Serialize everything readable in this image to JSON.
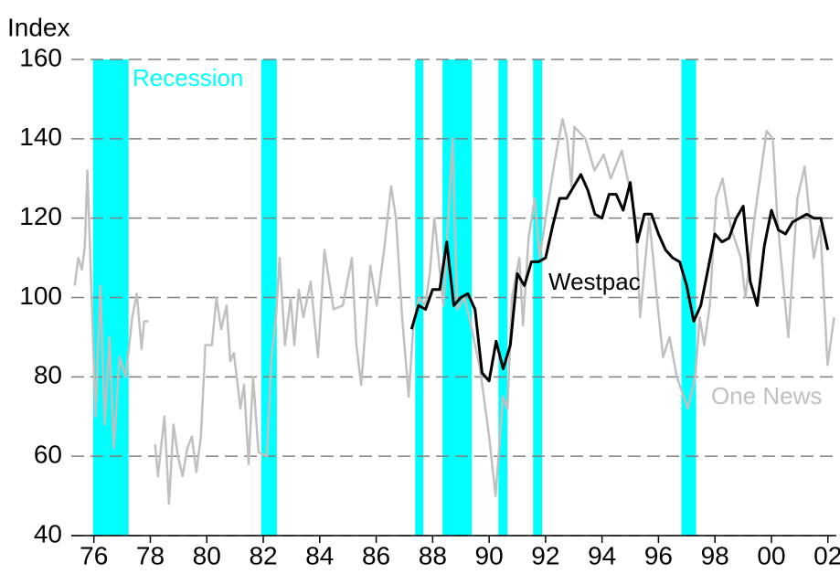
{
  "chart_data": {
    "type": "line",
    "y_axis_label": "Index",
    "recession_label": "Recession",
    "recession_color": "#00ffff",
    "recessions": [
      [
        1975.97,
        1977.23
      ],
      [
        1981.93,
        1982.48
      ],
      [
        1987.38,
        1987.67
      ],
      [
        1988.35,
        1989.39
      ],
      [
        1990.33,
        1990.65
      ],
      [
        1991.56,
        1991.88
      ],
      [
        1996.81,
        1997.33
      ]
    ],
    "xlim": [
      1975.2,
      2002.3
    ],
    "xticks": [
      {
        "value": 1976,
        "label": "76"
      },
      {
        "value": 1978,
        "label": "78"
      },
      {
        "value": 1980,
        "label": "80"
      },
      {
        "value": 1982,
        "label": "82"
      },
      {
        "value": 1984,
        "label": "84"
      },
      {
        "value": 1986,
        "label": "86"
      },
      {
        "value": 1988,
        "label": "88"
      },
      {
        "value": 1990,
        "label": "90"
      },
      {
        "value": 1992,
        "label": "92"
      },
      {
        "value": 1994,
        "label": "94"
      },
      {
        "value": 1996,
        "label": "96"
      },
      {
        "value": 1998,
        "label": "98"
      },
      {
        "value": 2000,
        "label": "00"
      },
      {
        "value": 2002,
        "label": "02"
      }
    ],
    "ylim": [
      40,
      160
    ],
    "yticks": [
      40,
      60,
      80,
      100,
      120,
      140,
      160
    ],
    "grid": true,
    "series": [
      {
        "name": "One News",
        "color": "#c0c0c0",
        "x": [
          1975.32,
          1975.45,
          1975.58,
          1975.68,
          1975.77,
          1976.06,
          1976.23,
          1976.39,
          1976.55,
          1976.71,
          1976.91,
          1977.13,
          1977.36,
          1977.52,
          1977.69,
          1977.78,
          1977.94,
          1978.05,
          1978.17,
          1978.27,
          1978.5,
          1978.66,
          1978.82,
          1978.98,
          1979.14,
          1979.31,
          1979.47,
          1979.63,
          1979.79,
          1979.95,
          1980.18,
          1980.34,
          1980.51,
          1980.7,
          1980.83,
          1980.96,
          1981.19,
          1981.32,
          1981.48,
          1981.64,
          1981.83,
          1982.13,
          1982.29,
          1982.45,
          1982.58,
          1982.77,
          1982.97,
          1983.1,
          1983.26,
          1983.42,
          1983.68,
          1983.94,
          1984.17,
          1984.49,
          1984.82,
          1985.14,
          1985.3,
          1985.47,
          1985.79,
          1986.02,
          1986.28,
          1986.53,
          1986.7,
          1986.92,
          1987.15,
          1987.31,
          1987.51,
          1987.73,
          1987.9,
          1988.06,
          1988.38,
          1988.71,
          1988.87,
          1989.13,
          1989.36,
          1989.68,
          1990.0,
          1990.23,
          1990.49,
          1990.65,
          1990.81,
          1991.07,
          1991.2,
          1991.4,
          1991.62,
          1991.79,
          1992.11,
          1992.34,
          1992.6,
          1992.76,
          1992.92,
          1993.02,
          1993.41,
          1993.73,
          1994.06,
          1994.31,
          1994.7,
          1995.19,
          1995.35,
          1995.67,
          1995.81,
          1995.94,
          1996.16,
          1996.39,
          1996.65,
          1997.04,
          1997.3,
          1997.46,
          1997.62,
          1997.82,
          1998.04,
          1998.27,
          1998.5,
          1998.59,
          1998.92,
          1999.08,
          1999.4,
          1999.83,
          2000.05,
          2000.21,
          2000.6,
          2000.92,
          2001.18,
          2001.5,
          2001.73,
          2001.99,
          2002.22
        ],
        "values": [
          103,
          110,
          107,
          113,
          132,
          70,
          103,
          68,
          90,
          62,
          85,
          80,
          95,
          101,
          87,
          94,
          94,
          null,
          63,
          55,
          70,
          48,
          68,
          60,
          55,
          62,
          65,
          56,
          65,
          88,
          88,
          100,
          92,
          98,
          84,
          86,
          72,
          78,
          58,
          80,
          61,
          60,
          85,
          95,
          110,
          88,
          100,
          88,
          102,
          95,
          104,
          85,
          112,
          97,
          98,
          110,
          88,
          78,
          108,
          98,
          112,
          128,
          120,
          95,
          75,
          92,
          100,
          98,
          106,
          120,
          98,
          140,
          97,
          100,
          93,
          82,
          65,
          50,
          75,
          72,
          100,
          110,
          93,
          115,
          125,
          110,
          125,
          135,
          145,
          140,
          128,
          143,
          140,
          132,
          136,
          130,
          137,
          120,
          95,
          120,
          110,
          100,
          85,
          90,
          80,
          72,
          80,
          95,
          88,
          98,
          125,
          130,
          120,
          117,
          110,
          100,
          120,
          142,
          140,
          120,
          90,
          125,
          133,
          110,
          118,
          83,
          95
        ]
      },
      {
        "name": "Westpac",
        "color": "#000000",
        "x": [
          1987.25,
          1987.5,
          1987.75,
          1988.0,
          1988.25,
          1988.5,
          1988.75,
          1989.0,
          1989.25,
          1989.5,
          1989.75,
          1990.0,
          1990.25,
          1990.5,
          1990.75,
          1991.0,
          1991.25,
          1991.5,
          1991.75,
          1992.0,
          1992.25,
          1992.5,
          1992.75,
          1993.0,
          1993.25,
          1993.5,
          1993.75,
          1994.0,
          1994.25,
          1994.5,
          1994.75,
          1995.0,
          1995.25,
          1995.5,
          1995.75,
          1996.0,
          1996.25,
          1996.5,
          1996.75,
          1997.0,
          1997.25,
          1997.5,
          1997.75,
          1998.0,
          1998.25,
          1998.5,
          1998.75,
          1999.0,
          1999.25,
          1999.5,
          1999.75,
          2000.0,
          2000.25,
          2000.5,
          2000.75,
          2001.0,
          2001.25,
          2001.5,
          2001.75,
          2002.0
        ],
        "values": [
          92,
          98,
          97,
          102,
          102,
          114,
          98,
          100,
          101,
          97,
          81,
          79,
          89,
          82,
          88,
          106,
          103,
          109,
          109,
          110,
          118,
          125,
          125,
          128,
          131,
          127,
          121,
          120,
          126,
          126,
          122,
          129,
          114,
          121,
          121,
          116,
          112,
          110,
          109,
          103,
          94,
          98,
          107,
          116,
          114,
          115,
          120,
          123,
          104,
          98,
          113,
          122,
          117,
          116,
          119,
          120,
          121,
          120,
          120,
          112
        ]
      }
    ]
  }
}
